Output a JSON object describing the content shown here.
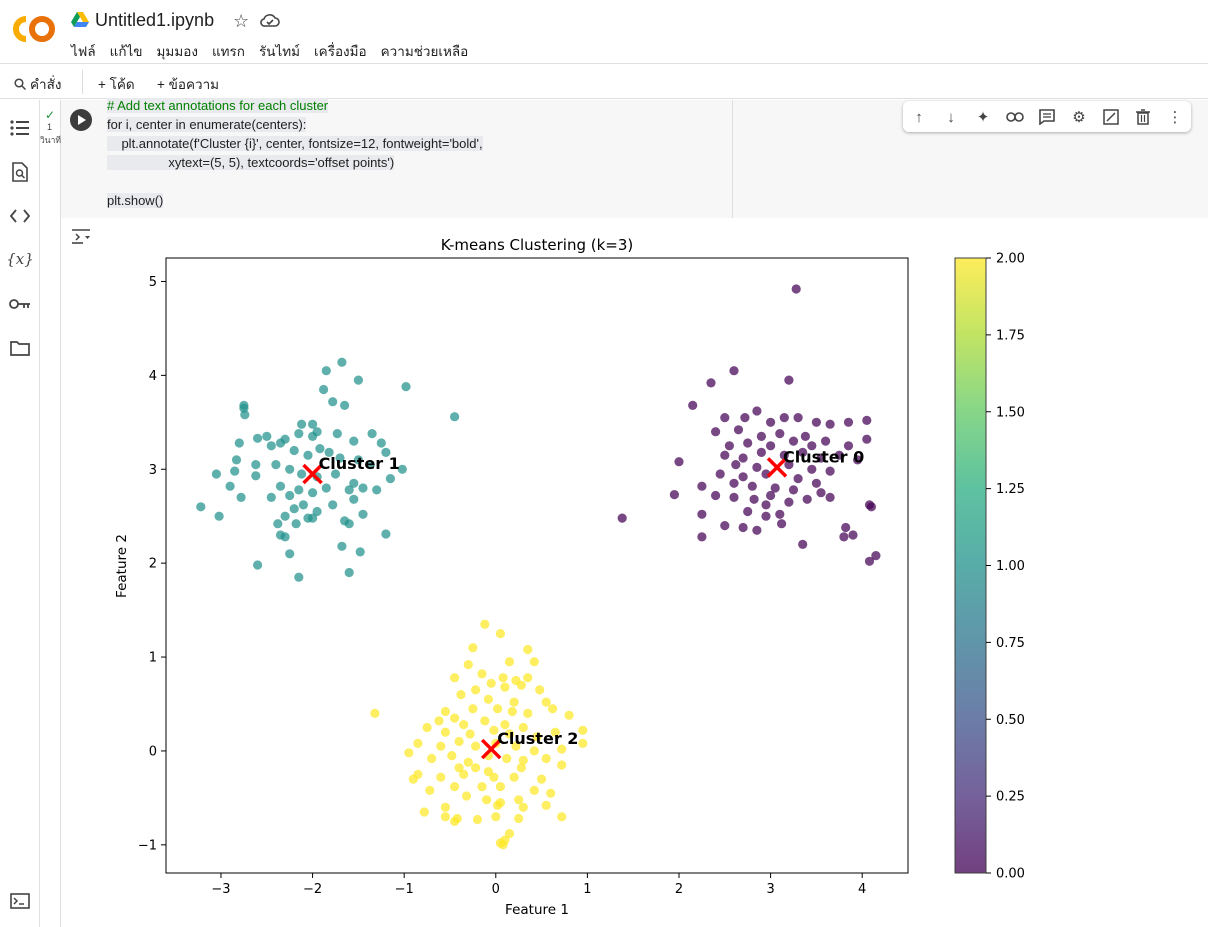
{
  "header": {
    "title": "Untitled1.ipynb",
    "menu": [
      "ไฟล์",
      "แก้ไข",
      "มุมมอง",
      "แทรก",
      "รันไทม์",
      "เครื่องมือ",
      "ความช่วยเหลือ"
    ]
  },
  "toolbar": {
    "command_label": "คำสั่ง",
    "code_label": "+ โค้ด",
    "text_label": "+ ข้อความ"
  },
  "cell": {
    "exec_count": "1",
    "exec_time": "วินาที",
    "code_lines": [
      "# Add text annotations for each cluster",
      "for i, center in enumerate(centers):",
      "    plt.annotate(f'Cluster {i}', center, fontsize=12, fontweight='bold',",
      "                 xytext=(5, 5), textcoords='offset points')",
      "",
      "plt.show()"
    ]
  },
  "colors": {
    "accent": "#f9ab00",
    "run": "#3c3c3c",
    "center_marker": "#ff0000"
  },
  "chart_data": {
    "type": "scatter",
    "title": "K-means Clustering (k=3)",
    "xlabel": "Feature 1",
    "ylabel": "Feature 2",
    "xlim": [
      -3.6,
      4.5
    ],
    "ylim": [
      -1.3,
      5.25
    ],
    "xticks": [
      -3,
      -2,
      -1,
      0,
      1,
      2,
      3,
      4
    ],
    "yticks": [
      -1,
      0,
      1,
      2,
      3,
      4,
      5
    ],
    "colorbar": {
      "min": 0.0,
      "max": 2.0,
      "ticks": [
        "0.00",
        "0.25",
        "0.50",
        "0.75",
        "1.00",
        "1.25",
        "1.50",
        "1.75",
        "2.00"
      ],
      "colormap": "viridis"
    },
    "centers": [
      {
        "label": "Cluster 0",
        "x": 3.07,
        "y": 3.02
      },
      {
        "label": "Cluster 1",
        "x": -2.0,
        "y": 2.95
      },
      {
        "label": "Cluster 2",
        "x": -0.05,
        "y": 0.02
      }
    ],
    "series": [
      {
        "cluster": 0,
        "color": "#440154",
        "points": [
          [
            3.28,
            4.92
          ],
          [
            2.6,
            4.05
          ],
          [
            2.35,
            3.92
          ],
          [
            3.2,
            3.95
          ],
          [
            2.15,
            3.68
          ],
          [
            2.5,
            3.55
          ],
          [
            2.72,
            3.55
          ],
          [
            2.85,
            3.62
          ],
          [
            3.0,
            3.5
          ],
          [
            3.15,
            3.55
          ],
          [
            3.3,
            3.55
          ],
          [
            3.5,
            3.5
          ],
          [
            3.65,
            3.48
          ],
          [
            3.85,
            3.5
          ],
          [
            4.05,
            3.52
          ],
          [
            2.4,
            3.4
          ],
          [
            2.65,
            3.42
          ],
          [
            2.9,
            3.35
          ],
          [
            3.1,
            3.38
          ],
          [
            3.38,
            3.35
          ],
          [
            3.6,
            3.3
          ],
          [
            3.85,
            3.25
          ],
          [
            4.05,
            3.32
          ],
          [
            2.55,
            3.25
          ],
          [
            2.75,
            3.28
          ],
          [
            3.0,
            3.25
          ],
          [
            3.25,
            3.3
          ],
          [
            3.45,
            3.25
          ],
          [
            2.5,
            3.15
          ],
          [
            2.7,
            3.12
          ],
          [
            2.9,
            3.18
          ],
          [
            3.15,
            3.15
          ],
          [
            3.35,
            3.18
          ],
          [
            3.55,
            3.12
          ],
          [
            3.75,
            3.15
          ],
          [
            3.95,
            3.1
          ],
          [
            2.0,
            3.08
          ],
          [
            2.62,
            3.05
          ],
          [
            2.85,
            3.02
          ],
          [
            3.2,
            3.05
          ],
          [
            3.45,
            3.0
          ],
          [
            3.65,
            2.98
          ],
          [
            2.45,
            2.95
          ],
          [
            2.7,
            2.92
          ],
          [
            2.95,
            2.95
          ],
          [
            3.3,
            2.9
          ],
          [
            3.5,
            2.85
          ],
          [
            2.25,
            2.82
          ],
          [
            2.6,
            2.85
          ],
          [
            2.8,
            2.82
          ],
          [
            3.05,
            2.8
          ],
          [
            3.25,
            2.78
          ],
          [
            3.55,
            2.75
          ],
          [
            1.95,
            2.73
          ],
          [
            2.4,
            2.72
          ],
          [
            2.6,
            2.7
          ],
          [
            2.82,
            2.68
          ],
          [
            3.0,
            2.72
          ],
          [
            3.2,
            2.65
          ],
          [
            3.4,
            2.68
          ],
          [
            3.65,
            2.7
          ],
          [
            2.75,
            2.55
          ],
          [
            2.95,
            2.62
          ],
          [
            3.1,
            2.52
          ],
          [
            2.25,
            2.52
          ],
          [
            2.5,
            2.4
          ],
          [
            2.95,
            2.5
          ],
          [
            2.7,
            2.38
          ],
          [
            2.85,
            2.35
          ],
          [
            3.12,
            2.42
          ],
          [
            3.82,
            2.38
          ],
          [
            2.25,
            2.28
          ],
          [
            3.35,
            2.2
          ],
          [
            3.9,
            2.3
          ],
          [
            3.8,
            2.28
          ],
          [
            4.08,
            2.62
          ],
          [
            4.1,
            2.6
          ],
          [
            4.15,
            2.08
          ],
          [
            4.08,
            2.02
          ],
          [
            1.38,
            2.48
          ]
        ]
      },
      {
        "cluster": 1,
        "color": "#21918c",
        "points": [
          [
            -1.68,
            4.14
          ],
          [
            -1.5,
            3.95
          ],
          [
            -1.85,
            4.05
          ],
          [
            -1.78,
            3.72
          ],
          [
            -1.65,
            3.68
          ],
          [
            -1.88,
            3.85
          ],
          [
            -0.98,
            3.88
          ],
          [
            -2.75,
            3.68
          ],
          [
            -2.75,
            3.65
          ],
          [
            -2.74,
            3.58
          ],
          [
            -2.0,
            3.48
          ],
          [
            -2.12,
            3.48
          ],
          [
            -2.0,
            3.35
          ],
          [
            -2.15,
            3.38
          ],
          [
            -2.3,
            3.32
          ],
          [
            -1.95,
            3.4
          ],
          [
            -2.35,
            3.28
          ],
          [
            -2.6,
            3.33
          ],
          [
            -2.8,
            3.28
          ],
          [
            -2.83,
            3.1
          ],
          [
            -1.73,
            3.38
          ],
          [
            -1.55,
            3.3
          ],
          [
            -1.35,
            3.38
          ],
          [
            -1.25,
            3.28
          ],
          [
            -2.5,
            3.35
          ],
          [
            -2.45,
            3.25
          ],
          [
            -2.2,
            3.2
          ],
          [
            -2.05,
            3.15
          ],
          [
            -1.92,
            3.22
          ],
          [
            -1.82,
            3.18
          ],
          [
            -1.7,
            3.12
          ],
          [
            -1.5,
            3.1
          ],
          [
            -1.37,
            3.05
          ],
          [
            -2.62,
            3.05
          ],
          [
            -2.4,
            3.05
          ],
          [
            -2.25,
            3.0
          ],
          [
            -2.12,
            2.95
          ],
          [
            -1.95,
            2.92
          ],
          [
            -1.75,
            2.95
          ],
          [
            -1.55,
            2.85
          ],
          [
            -1.02,
            3.0
          ],
          [
            -1.2,
            3.18
          ],
          [
            -2.85,
            2.98
          ],
          [
            -3.05,
            2.95
          ],
          [
            -2.9,
            2.82
          ],
          [
            -2.62,
            2.93
          ],
          [
            -2.35,
            2.82
          ],
          [
            -2.15,
            2.78
          ],
          [
            -2.0,
            2.75
          ],
          [
            -1.85,
            2.8
          ],
          [
            -1.6,
            2.78
          ],
          [
            -1.45,
            2.8
          ],
          [
            -1.3,
            2.78
          ],
          [
            -1.15,
            2.9
          ],
          [
            -2.45,
            2.7
          ],
          [
            -2.25,
            2.72
          ],
          [
            -2.78,
            2.7
          ],
          [
            -2.1,
            2.62
          ],
          [
            -2.2,
            2.58
          ],
          [
            -1.95,
            2.55
          ],
          [
            -1.78,
            2.62
          ],
          [
            -1.55,
            2.68
          ],
          [
            -1.45,
            2.52
          ],
          [
            -1.65,
            2.45
          ],
          [
            -2.3,
            2.5
          ],
          [
            -2.05,
            2.48
          ],
          [
            -2.18,
            2.42
          ],
          [
            -2.38,
            2.42
          ],
          [
            -2.0,
            2.48
          ],
          [
            -1.6,
            2.42
          ],
          [
            -3.22,
            2.6
          ],
          [
            -3.02,
            2.5
          ],
          [
            -2.35,
            2.3
          ],
          [
            -2.3,
            2.28
          ],
          [
            -2.25,
            2.1
          ],
          [
            -1.2,
            2.31
          ],
          [
            -1.68,
            2.18
          ],
          [
            -1.48,
            2.12
          ],
          [
            -2.6,
            1.98
          ],
          [
            -1.6,
            1.9
          ],
          [
            -2.15,
            1.85
          ],
          [
            -0.45,
            3.56
          ]
        ]
      },
      {
        "cluster": 2,
        "color": "#fde725",
        "points": [
          [
            -0.12,
            1.35
          ],
          [
            0.05,
            1.25
          ],
          [
            -0.25,
            1.1
          ],
          [
            0.35,
            1.08
          ],
          [
            0.15,
            0.95
          ],
          [
            -0.3,
            0.92
          ],
          [
            0.42,
            0.95
          ],
          [
            -0.15,
            0.82
          ],
          [
            0.08,
            0.78
          ],
          [
            0.22,
            0.75
          ],
          [
            0.35,
            0.78
          ],
          [
            -0.45,
            0.78
          ],
          [
            -0.05,
            0.72
          ],
          [
            0.1,
            0.68
          ],
          [
            0.28,
            0.7
          ],
          [
            -0.22,
            0.65
          ],
          [
            0.48,
            0.65
          ],
          [
            -0.38,
            0.6
          ],
          [
            -0.08,
            0.55
          ],
          [
            0.2,
            0.52
          ],
          [
            0.55,
            0.52
          ],
          [
            -0.55,
            0.42
          ],
          [
            -0.25,
            0.45
          ],
          [
            0.02,
            0.45
          ],
          [
            0.18,
            0.42
          ],
          [
            0.35,
            0.4
          ],
          [
            0.62,
            0.45
          ],
          [
            -1.32,
            0.4
          ],
          [
            -0.45,
            0.35
          ],
          [
            -0.62,
            0.32
          ],
          [
            -0.35,
            0.28
          ],
          [
            -0.12,
            0.32
          ],
          [
            0.1,
            0.28
          ],
          [
            0.3,
            0.25
          ],
          [
            0.8,
            0.38
          ],
          [
            -0.75,
            0.25
          ],
          [
            -0.55,
            0.2
          ],
          [
            -0.28,
            0.18
          ],
          [
            -0.02,
            0.22
          ],
          [
            0.15,
            0.18
          ],
          [
            0.45,
            0.15
          ],
          [
            0.65,
            0.2
          ],
          [
            0.95,
            0.22
          ],
          [
            -0.85,
            0.08
          ],
          [
            -0.6,
            0.05
          ],
          [
            -0.4,
            0.1
          ],
          [
            -0.22,
            0.05
          ],
          [
            0.0,
            0.08
          ],
          [
            0.22,
            0.05
          ],
          [
            0.42,
            0.0
          ],
          [
            0.72,
            0.02
          ],
          [
            0.95,
            0.08
          ],
          [
            -0.95,
            -0.02
          ],
          [
            -0.7,
            -0.08
          ],
          [
            -0.48,
            -0.05
          ],
          [
            -0.3,
            -0.12
          ],
          [
            -0.08,
            -0.05
          ],
          [
            0.12,
            -0.08
          ],
          [
            0.3,
            -0.1
          ],
          [
            0.55,
            -0.08
          ],
          [
            -0.4,
            -0.18
          ],
          [
            -0.22,
            -0.18
          ],
          [
            -0.08,
            -0.22
          ],
          [
            0.28,
            -0.18
          ],
          [
            0.72,
            -0.15
          ],
          [
            -0.35,
            -0.25
          ],
          [
            -0.02,
            -0.28
          ],
          [
            0.2,
            -0.28
          ],
          [
            0.5,
            -0.3
          ],
          [
            -0.85,
            -0.25
          ],
          [
            -0.6,
            -0.28
          ],
          [
            -0.9,
            -0.3
          ],
          [
            -0.45,
            -0.38
          ],
          [
            -0.15,
            -0.38
          ],
          [
            0.05,
            -0.38
          ],
          [
            0.42,
            -0.42
          ],
          [
            0.6,
            -0.45
          ],
          [
            -0.72,
            -0.42
          ],
          [
            -0.32,
            -0.48
          ],
          [
            -0.1,
            -0.52
          ],
          [
            0.25,
            -0.52
          ],
          [
            0.05,
            -0.55
          ],
          [
            0.02,
            -0.58
          ],
          [
            0.3,
            -0.6
          ],
          [
            0.55,
            -0.58
          ],
          [
            -0.55,
            -0.6
          ],
          [
            -0.78,
            -0.65
          ],
          [
            -0.55,
            -0.7
          ],
          [
            -0.42,
            -0.72
          ],
          [
            -0.45,
            -0.75
          ],
          [
            -0.2,
            -0.73
          ],
          [
            0.0,
            -0.7
          ],
          [
            0.25,
            -0.72
          ],
          [
            0.72,
            -0.7
          ],
          [
            0.15,
            -0.88
          ],
          [
            0.1,
            -0.95
          ],
          [
            0.05,
            -0.98
          ],
          [
            0.08,
            -1.0
          ]
        ]
      }
    ]
  }
}
